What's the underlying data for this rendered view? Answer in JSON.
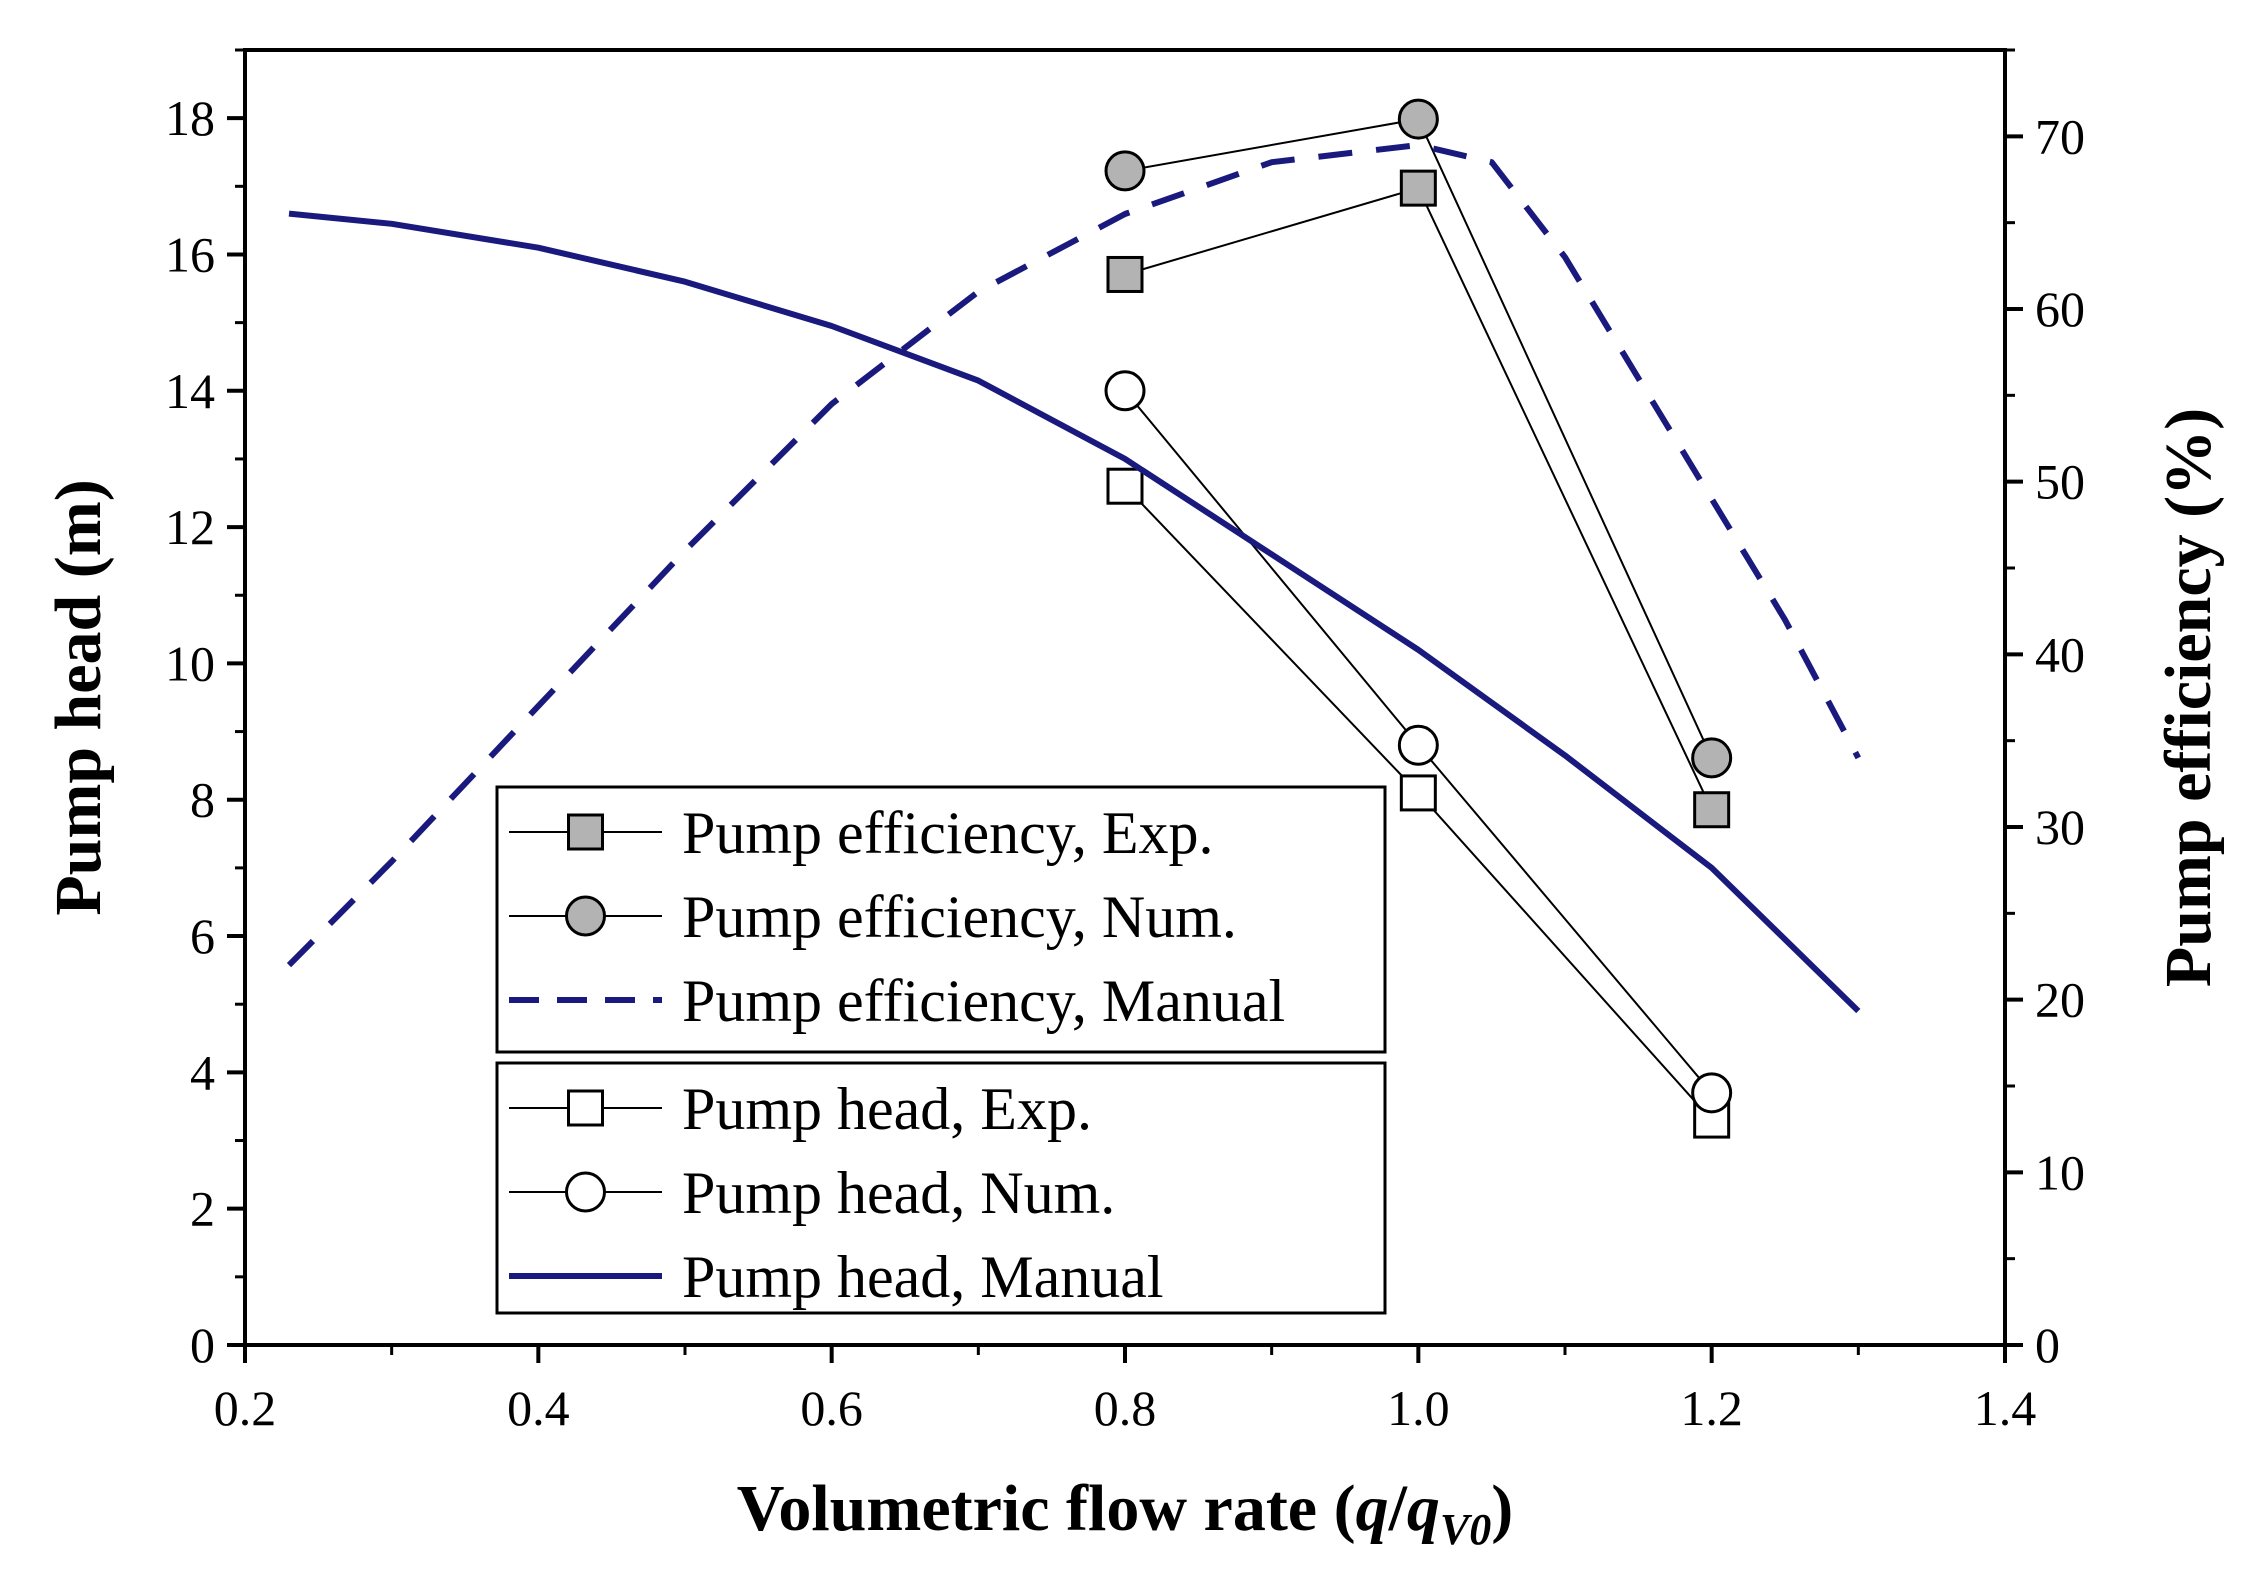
{
  "chart_data": {
    "type": "line",
    "xlabel_main": "Volumetric flow rate (",
    "xlabel_q": "q",
    "xlabel_slash": "/",
    "xlabel_q2": "q",
    "xlabel_sub": "V0",
    "xlabel_close": ")",
    "ylabel_left": "Pump head (m)",
    "ylabel_right": "Pump efficiency (%)",
    "xlim": [
      0.2,
      1.4
    ],
    "ylim_left": [
      0,
      19
    ],
    "ylim_right": [
      0,
      75
    ],
    "x_ticks": [
      "0.2",
      "0.4",
      "0.6",
      "0.8",
      "1.0",
      "1.2",
      "1.4"
    ],
    "y_left_ticks": [
      "0",
      "2",
      "4",
      "6",
      "8",
      "10",
      "12",
      "14",
      "16",
      "18"
    ],
    "y_right_ticks": [
      "0",
      "10",
      "20",
      "30",
      "40",
      "50",
      "60",
      "70"
    ],
    "series": [
      {
        "name": "Pump efficiency, Exp.",
        "axis": "right",
        "style": "line-square-filled",
        "color": "#000000",
        "x": [
          0.8,
          1.0,
          1.2
        ],
        "y": [
          62.0,
          67.0,
          31.0
        ]
      },
      {
        "name": "Pump efficiency, Num.",
        "axis": "right",
        "style": "line-circle-filled",
        "color": "#000000",
        "x": [
          0.8,
          1.0,
          1.2
        ],
        "y": [
          68.0,
          71.0,
          34.0
        ]
      },
      {
        "name": "Pump efficiency, Manual",
        "axis": "right",
        "style": "dashed",
        "color": "#1a1a7e",
        "x": [
          0.23,
          0.3,
          0.4,
          0.5,
          0.6,
          0.7,
          0.8,
          0.9,
          1.0,
          1.05,
          1.1,
          1.15,
          1.2,
          1.25,
          1.3
        ],
        "y": [
          22.0,
          28.0,
          37.0,
          46.0,
          54.5,
          61.0,
          65.5,
          68.5,
          69.5,
          68.5,
          63.0,
          56.0,
          49.0,
          42.0,
          34.0
        ]
      },
      {
        "name": "Pump head, Exp.",
        "axis": "left",
        "style": "line-square-open",
        "color": "#000000",
        "x": [
          0.8,
          1.0,
          1.2
        ],
        "y": [
          12.6,
          8.1,
          3.3
        ]
      },
      {
        "name": "Pump head, Num.",
        "axis": "left",
        "style": "line-circle-open",
        "color": "#000000",
        "x": [
          0.8,
          1.0,
          1.2
        ],
        "y": [
          14.0,
          8.8,
          3.7
        ]
      },
      {
        "name": "Pump head, Manual",
        "axis": "left",
        "style": "solid",
        "color": "#1a1a7e",
        "x": [
          0.23,
          0.3,
          0.4,
          0.5,
          0.6,
          0.7,
          0.8,
          0.9,
          1.0,
          1.1,
          1.2,
          1.3
        ],
        "y": [
          16.6,
          16.45,
          16.1,
          15.6,
          14.95,
          14.15,
          13.0,
          11.6,
          10.2,
          8.65,
          7.0,
          4.9
        ]
      }
    ],
    "legend_groups": [
      {
        "entries": [
          0,
          1,
          2
        ]
      },
      {
        "entries": [
          3,
          4,
          5
        ]
      }
    ]
  }
}
